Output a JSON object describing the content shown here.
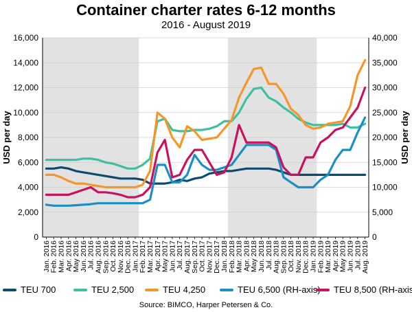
{
  "chart_data": {
    "type": "line",
    "title": "Container charter rates 6-12 months",
    "subtitle": "2016 - August 2019",
    "ylabel": "USD per day",
    "y2label": "USD per day",
    "ylim": [
      0,
      16000
    ],
    "y2lim": [
      0,
      40000
    ],
    "yticks": [
      "0",
      "2,000",
      "4,000",
      "6,000",
      "8,000",
      "10,000",
      "12,000",
      "14,000",
      "16,000"
    ],
    "y2ticks": [
      "0",
      "5,000",
      "10,000",
      "15,000",
      "20,000",
      "25,000",
      "30,000",
      "35,000",
      "40,000"
    ],
    "x_labels": [
      "Jan. 2016",
      "Feb. 2016",
      "Mar. 2016",
      "Apr. 2016",
      "May 2016",
      "Jun. 2016",
      "Jul. 2016",
      "Aug. 2016",
      "Sep. 2016",
      "Oct. 2016",
      "Nov. 2016",
      "Dec. 2016",
      "Jan. 2017",
      "Feb. 2017",
      "Mar. 2017",
      "Apr. 2017",
      "May 2017",
      "Jun. 2017",
      "Jul. 2017",
      "Aug. 2017",
      "Sep. 2017",
      "Oct. 2017",
      "Nov. 2017",
      "Dec. 2017",
      "Jan. 2018",
      "Feb. 2018",
      "Mar. 2018",
      "Apr. 2018",
      "May 2018",
      "Jun. 2018",
      "Jul. 2018",
      "Aug. 2018",
      "Sep. 2018",
      "Oct. 2018",
      "Nov. 2018",
      "Dec. 2018",
      "Jan. 2019",
      "Feb. 2019",
      "Mar. 2019",
      "Apr. 2019",
      "May 2019",
      "Jun. 2019",
      "Jul. 2019",
      "Aug. 2019"
    ],
    "shaded_periods": [
      [
        "Jan. 2016",
        "Jan. 2017"
      ],
      [
        "Feb. 2018",
        "Jan. 2019"
      ]
    ],
    "grid": true,
    "legend_position": "bottom",
    "series": [
      {
        "name": "TEU 700",
        "axis": "left",
        "color": "#0d4a6e",
        "points": [
          [
            0,
            5500
          ],
          [
            1,
            5500
          ],
          [
            2,
            5600
          ],
          [
            3,
            5500
          ],
          [
            4,
            5300
          ],
          [
            5,
            5200
          ],
          [
            6,
            5100
          ],
          [
            7,
            5000
          ],
          [
            8,
            4900
          ],
          [
            9,
            4800
          ],
          [
            10,
            4700
          ],
          [
            11,
            4700
          ],
          [
            12,
            4700
          ],
          [
            13,
            4600
          ],
          [
            14,
            4300
          ],
          [
            15,
            4300
          ],
          [
            16,
            4300
          ],
          [
            17,
            4400
          ],
          [
            18,
            4600
          ],
          [
            19,
            4500
          ],
          [
            20,
            4700
          ],
          [
            21,
            4800
          ],
          [
            22,
            5100
          ],
          [
            23,
            5200
          ],
          [
            24,
            5300
          ],
          [
            25,
            5300
          ],
          [
            26,
            5400
          ],
          [
            27,
            5500
          ],
          [
            28,
            5500
          ],
          [
            29,
            5500
          ],
          [
            30,
            5500
          ],
          [
            31,
            5400
          ],
          [
            32,
            5200
          ],
          [
            33,
            5000
          ],
          [
            34,
            5000
          ],
          [
            35,
            5000
          ],
          [
            36,
            5000
          ],
          [
            37,
            5000
          ],
          [
            38,
            5000
          ],
          [
            39,
            5000
          ],
          [
            40,
            5000
          ],
          [
            41,
            5000
          ],
          [
            42,
            5000
          ],
          [
            43,
            5000
          ]
        ]
      },
      {
        "name": "TEU 2,500",
        "axis": "left",
        "color": "#3ec0a0",
        "points": [
          [
            0,
            6200
          ],
          [
            1,
            6200
          ],
          [
            2,
            6200
          ],
          [
            3,
            6200
          ],
          [
            4,
            6200
          ],
          [
            5,
            6300
          ],
          [
            6,
            6300
          ],
          [
            7,
            6200
          ],
          [
            8,
            6000
          ],
          [
            9,
            5900
          ],
          [
            10,
            5700
          ],
          [
            11,
            5500
          ],
          [
            12,
            5500
          ],
          [
            13,
            5800
          ],
          [
            14,
            6300
          ],
          [
            15,
            9300
          ],
          [
            16,
            9500
          ],
          [
            17,
            8600
          ],
          [
            18,
            8500
          ],
          [
            19,
            8500
          ],
          [
            20,
            8600
          ],
          [
            21,
            8600
          ],
          [
            22,
            8700
          ],
          [
            23,
            8900
          ],
          [
            24,
            9300
          ],
          [
            25,
            9300
          ],
          [
            26,
            10000
          ],
          [
            27,
            11100
          ],
          [
            28,
            11900
          ],
          [
            29,
            12000
          ],
          [
            30,
            11200
          ],
          [
            31,
            10900
          ],
          [
            32,
            10400
          ],
          [
            33,
            10000
          ],
          [
            34,
            9500
          ],
          [
            35,
            9200
          ],
          [
            36,
            9000
          ],
          [
            37,
            9000
          ],
          [
            38,
            9000
          ],
          [
            39,
            9000
          ],
          [
            40,
            9100
          ],
          [
            41,
            8800
          ],
          [
            42,
            8800
          ],
          [
            43,
            9100
          ]
        ]
      },
      {
        "name": "TEU 4,250",
        "axis": "left",
        "color": "#f5962a",
        "points": [
          [
            0,
            5000
          ],
          [
            1,
            5000
          ],
          [
            2,
            4800
          ],
          [
            3,
            4500
          ],
          [
            4,
            4300
          ],
          [
            5,
            4300
          ],
          [
            6,
            4200
          ],
          [
            7,
            4100
          ],
          [
            8,
            4000
          ],
          [
            9,
            4000
          ],
          [
            10,
            4000
          ],
          [
            11,
            4000
          ],
          [
            12,
            4000
          ],
          [
            13,
            4200
          ],
          [
            14,
            5300
          ],
          [
            15,
            10000
          ],
          [
            16,
            9500
          ],
          [
            17,
            8000
          ],
          [
            18,
            7200
          ],
          [
            19,
            8900
          ],
          [
            20,
            8500
          ],
          [
            21,
            7800
          ],
          [
            22,
            7900
          ],
          [
            23,
            8000
          ],
          [
            24,
            8700
          ],
          [
            25,
            9400
          ],
          [
            26,
            11200
          ],
          [
            27,
            12400
          ],
          [
            28,
            13500
          ],
          [
            29,
            13600
          ],
          [
            30,
            12300
          ],
          [
            31,
            12300
          ],
          [
            32,
            11500
          ],
          [
            33,
            10300
          ],
          [
            34,
            9800
          ],
          [
            35,
            9000
          ],
          [
            36,
            8700
          ],
          [
            37,
            8800
          ],
          [
            38,
            9100
          ],
          [
            39,
            9200
          ],
          [
            40,
            9300
          ],
          [
            41,
            10500
          ],
          [
            42,
            13000
          ],
          [
            43,
            14200
          ]
        ]
      },
      {
        "name": "TEU 6,500 (RH-axis)",
        "axis": "right",
        "color": "#1b8fc4",
        "points": [
          [
            0,
            6500
          ],
          [
            1,
            6300
          ],
          [
            2,
            6300
          ],
          [
            3,
            6300
          ],
          [
            4,
            6400
          ],
          [
            5,
            6500
          ],
          [
            6,
            6600
          ],
          [
            7,
            6800
          ],
          [
            8,
            6800
          ],
          [
            9,
            6800
          ],
          [
            10,
            6800
          ],
          [
            11,
            6800
          ],
          [
            12,
            6800
          ],
          [
            13,
            6800
          ],
          [
            14,
            7500
          ],
          [
            15,
            14500
          ],
          [
            16,
            14500
          ],
          [
            17,
            11000
          ],
          [
            18,
            11000
          ],
          [
            19,
            12500
          ],
          [
            20,
            16500
          ],
          [
            21,
            14500
          ],
          [
            22,
            13500
          ],
          [
            23,
            13500
          ],
          [
            24,
            14000
          ],
          [
            25,
            14500
          ],
          [
            26,
            16500
          ],
          [
            27,
            18500
          ],
          [
            28,
            18500
          ],
          [
            29,
            18500
          ],
          [
            30,
            18500
          ],
          [
            31,
            17500
          ],
          [
            32,
            12000
          ],
          [
            33,
            11000
          ],
          [
            34,
            10000
          ],
          [
            35,
            10000
          ],
          [
            36,
            10000
          ],
          [
            37,
            11500
          ],
          [
            38,
            12500
          ],
          [
            39,
            15500
          ],
          [
            40,
            17500
          ],
          [
            41,
            17500
          ],
          [
            42,
            21000
          ],
          [
            43,
            24000
          ]
        ]
      },
      {
        "name": "TEU 8,500 (RH-axis)",
        "axis": "right",
        "color": "#c8125e",
        "points": [
          [
            0,
            8500
          ],
          [
            1,
            8500
          ],
          [
            2,
            8500
          ],
          [
            3,
            8500
          ],
          [
            4,
            9000
          ],
          [
            5,
            9500
          ],
          [
            6,
            10000
          ],
          [
            7,
            9000
          ],
          [
            8,
            9000
          ],
          [
            9,
            8800
          ],
          [
            10,
            8500
          ],
          [
            11,
            8000
          ],
          [
            12,
            8000
          ],
          [
            13,
            8500
          ],
          [
            14,
            10000
          ],
          [
            15,
            17000
          ],
          [
            16,
            19500
          ],
          [
            17,
            12000
          ],
          [
            18,
            12500
          ],
          [
            19,
            15500
          ],
          [
            20,
            17500
          ],
          [
            21,
            17500
          ],
          [
            22,
            15000
          ],
          [
            23,
            12500
          ],
          [
            24,
            13000
          ],
          [
            25,
            16000
          ],
          [
            26,
            22500
          ],
          [
            27,
            19000
          ],
          [
            28,
            19000
          ],
          [
            29,
            19000
          ],
          [
            30,
            19000
          ],
          [
            31,
            18000
          ],
          [
            32,
            14000
          ],
          [
            33,
            12500
          ],
          [
            34,
            12500
          ],
          [
            35,
            16000
          ],
          [
            36,
            16000
          ],
          [
            37,
            19000
          ],
          [
            38,
            20000
          ],
          [
            39,
            21500
          ],
          [
            40,
            22000
          ],
          [
            41,
            24000
          ],
          [
            42,
            26000
          ],
          [
            43,
            30000
          ]
        ]
      }
    ]
  },
  "source": "Source: BIMCO, Harper Petersen & Co."
}
